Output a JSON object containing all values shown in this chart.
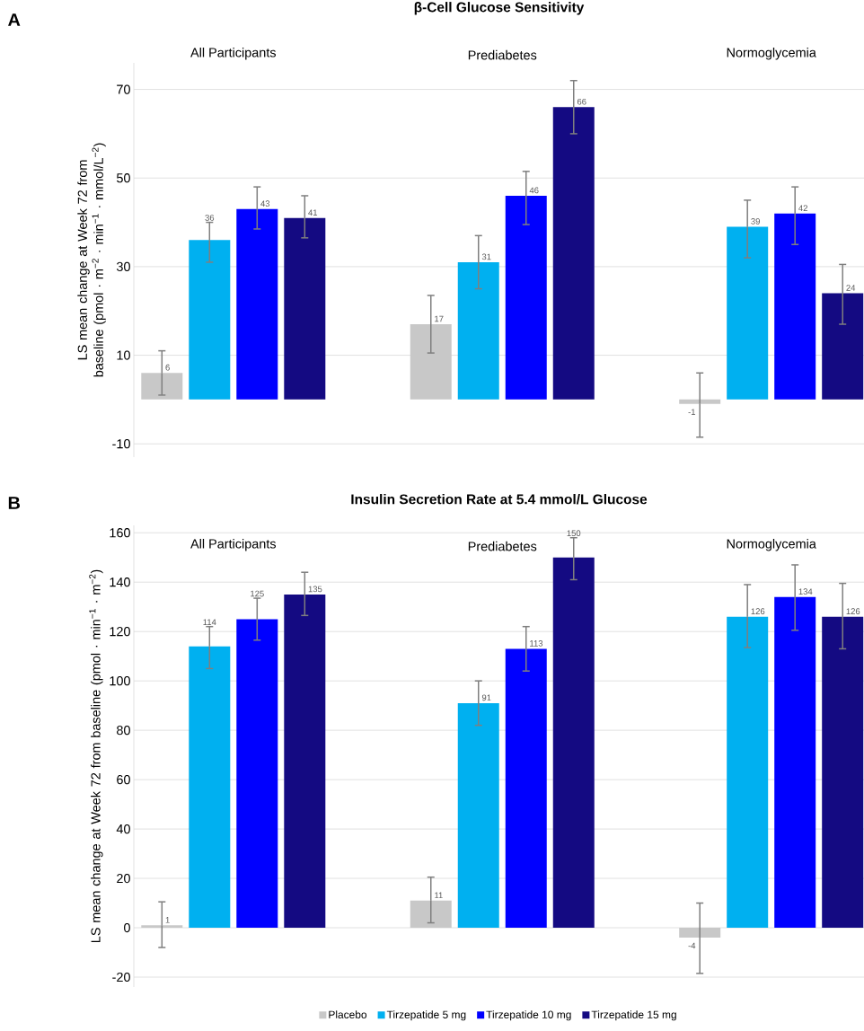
{
  "chart_data": [
    {
      "type": "bar",
      "title": "β-Cell Glucose Sensitivity",
      "ylabel": "LS mean change at Week 72 from baseline (pmol · m$^{−2}$ · min$^{−1}$ · mmol/L$^{−2}$)",
      "annotations": [
        "A"
      ],
      "categories": [
        "All Participants",
        "Prediabetes",
        "Normoglycemia"
      ],
      "ylim": [
        -13,
        76
      ],
      "yticks": [
        -10,
        10,
        30,
        50,
        70
      ],
      "grid": "y",
      "legend": false,
      "data_labels": true,
      "series": [
        {
          "color": "#c8c8c8",
          "values": [
            6,
            17,
            -1
          ],
          "errors": [
            [
              1,
              11
            ],
            [
              10.5,
              23.5
            ],
            [
              -8.5,
              6
            ]
          ]
        },
        {
          "color": "#00b0f0",
          "values": [
            36,
            31,
            39
          ],
          "errors": [
            [
              31,
              40
            ],
            [
              25,
              37
            ],
            [
              32,
              45
            ]
          ]
        },
        {
          "color": "#0000ff",
          "values": [
            43,
            46,
            42
          ],
          "errors": [
            [
              38.5,
              48
            ],
            [
              39.5,
              51.5
            ],
            [
              35,
              48
            ]
          ]
        },
        {
          "color": "#140a82",
          "values": [
            41,
            66,
            24
          ],
          "errors": [
            [
              36.5,
              46
            ],
            [
              60,
              72
            ],
            [
              17,
              30.5
            ]
          ]
        }
      ]
    },
    {
      "type": "bar",
      "title": "Insulin Secretion Rate at 5.4 mmol/L Glucose",
      "ylabel": "LS mean change at Week 72 from baseline (pmol · min$^{−1}$ · m$^{−2}$)",
      "annotations": [
        "B"
      ],
      "categories": [
        "All Participants",
        "Prediabetes",
        "Normoglycemia"
      ],
      "ylim": [
        -24,
        163
      ],
      "yticks": [
        -20,
        0,
        20,
        40,
        60,
        80,
        100,
        120,
        140,
        160
      ],
      "grid": "y",
      "legend": "bottom",
      "data_labels": true,
      "series": [
        {
          "name": "Placebo",
          "color": "#c8c8c8",
          "values": [
            1,
            11,
            -4
          ],
          "errors": [
            [
              -8,
              10.5
            ],
            [
              2,
              20.5
            ],
            [
              -18.5,
              10
            ]
          ]
        },
        {
          "name": "Tirzepatide 5 mg",
          "color": "#00b0f0",
          "values": [
            114,
            91,
            126
          ],
          "errors": [
            [
              105,
              122
            ],
            [
              82,
              100
            ],
            [
              113.5,
              139
            ]
          ]
        },
        {
          "name": "Tirzepatide 10 mg",
          "color": "#0000ff",
          "values": [
            125,
            113,
            134
          ],
          "errors": [
            [
              116.5,
              133.5
            ],
            [
              104,
              122
            ],
            [
              120.5,
              147
            ]
          ]
        },
        {
          "name": "Tirzepatide 15 mg",
          "color": "#140a82",
          "values": [
            135,
            150,
            126
          ],
          "errors": [
            [
              126.5,
              144
            ],
            [
              141,
              158
            ],
            [
              113,
              139.5
            ]
          ]
        }
      ]
    }
  ]
}
